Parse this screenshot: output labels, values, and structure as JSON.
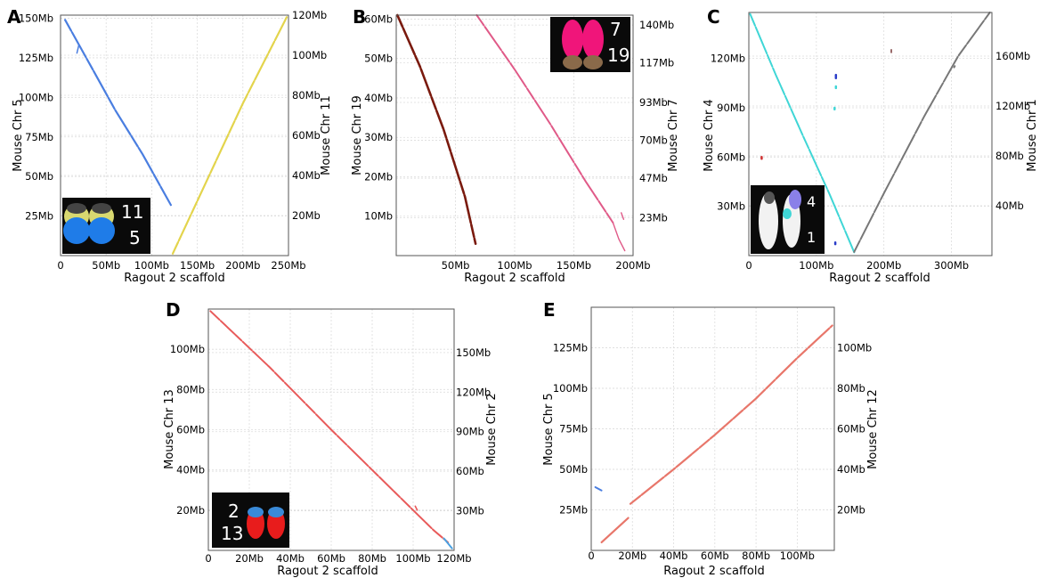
{
  "chart_data": [
    {
      "type": "scatter",
      "panel": "A",
      "xlabel": "Ragout 2 scaffold",
      "ylabel_left": "Mouse Chr 5",
      "ylabel_right": "Mouse Chr 11",
      "xlim": [
        0,
        250
      ],
      "ylim_left": [
        0,
        152
      ],
      "ylim_right": [
        0,
        120
      ],
      "x_ticks": [
        {
          "v": 0,
          "label": "0"
        },
        {
          "v": 50,
          "label": "50Mb"
        },
        {
          "v": 100,
          "label": "100Mb"
        },
        {
          "v": 150,
          "label": "150Mb"
        },
        {
          "v": 200,
          "label": "200Mb"
        },
        {
          "v": 250,
          "label": "250Mb"
        }
      ],
      "y_ticks_left": [
        {
          "v": 25,
          "label": "25Mb"
        },
        {
          "v": 50,
          "label": "50Mb"
        },
        {
          "v": 75,
          "label": "75Mb"
        },
        {
          "v": 100,
          "label": "100Mb"
        },
        {
          "v": 125,
          "label": "125Mb"
        },
        {
          "v": 150,
          "label": "150Mb"
        }
      ],
      "y_ticks_right": [
        {
          "v": 20,
          "label": "20Mb"
        },
        {
          "v": 40,
          "label": "40Mb"
        },
        {
          "v": 60,
          "label": "60Mb"
        },
        {
          "v": 80,
          "label": "80Mb"
        },
        {
          "v": 100,
          "label": "100Mb"
        },
        {
          "v": 120,
          "label": "120Mb"
        }
      ],
      "series": [
        {
          "axis": "left",
          "color": "#4a7ee0",
          "width": 2.2,
          "points": [
            [
              5,
              149
            ],
            [
              33,
              120
            ],
            [
              60,
              92
            ],
            [
              90,
              64
            ],
            [
              121,
              32
            ]
          ]
        },
        {
          "axis": "left",
          "color": "#4a7ee0",
          "width": 1.5,
          "points": [
            [
              18,
              128
            ],
            [
              20,
              133
            ]
          ]
        },
        {
          "axis": "right",
          "color": "#e3d44c",
          "width": 2.2,
          "points": [
            [
              123,
              1
            ],
            [
              160,
              37
            ],
            [
              200,
              76
            ],
            [
              248,
              119
            ]
          ]
        }
      ],
      "inset": {
        "labels": [
          "11",
          "5"
        ]
      }
    },
    {
      "type": "scatter",
      "panel": "B",
      "xlabel": "Ragout 2 scaffold",
      "ylabel_left": "Mouse Chr 19",
      "ylabel_right": "Mouse Chr 7",
      "xlim": [
        0,
        200
      ],
      "ylim_left": [
        0,
        61
      ],
      "ylim_right": [
        0,
        146
      ],
      "x_ticks": [
        {
          "v": 50,
          "label": "50Mb"
        },
        {
          "v": 100,
          "label": "100Mb"
        },
        {
          "v": 150,
          "label": "150Mb"
        },
        {
          "v": 200,
          "label": "200Mb"
        }
      ],
      "y_ticks_left": [
        {
          "v": 10,
          "label": "10Mb"
        },
        {
          "v": 20,
          "label": "20Mb"
        },
        {
          "v": 30,
          "label": "30Mb"
        },
        {
          "v": 40,
          "label": "40Mb"
        },
        {
          "v": 50,
          "label": "50Mb"
        },
        {
          "v": 60,
          "label": "60Mb"
        }
      ],
      "y_ticks_right": [
        {
          "v": 23,
          "label": "23Mb"
        },
        {
          "v": 47,
          "label": "47Mb"
        },
        {
          "v": 70,
          "label": "70Mb"
        },
        {
          "v": 93,
          "label": "93Mb"
        },
        {
          "v": 117,
          "label": "117Mb"
        },
        {
          "v": 140,
          "label": "140Mb"
        }
      ],
      "series": [
        {
          "axis": "left",
          "color": "#7a1a0e",
          "width": 2.6,
          "points": [
            [
              1,
              61
            ],
            [
              20,
              48
            ],
            [
              40,
              32
            ],
            [
              58,
              15
            ],
            [
              67,
              3
            ]
          ]
        },
        {
          "axis": "right",
          "color": "#e05a88",
          "width": 2.0,
          "points": [
            [
              68,
              146
            ],
            [
              100,
              113
            ],
            [
              130,
              80
            ],
            [
              160,
              45
            ],
            [
              183,
              20
            ]
          ]
        },
        {
          "axis": "right",
          "color": "#e05a88",
          "width": 1.4,
          "points": [
            [
              183,
              20
            ],
            [
              188,
              10
            ],
            [
              193,
              3
            ]
          ]
        },
        {
          "axis": "right",
          "color": "#e05a88",
          "width": 1.4,
          "points": [
            [
              190,
              26
            ],
            [
              192,
              22
            ]
          ]
        }
      ],
      "inset": {
        "labels": [
          "7",
          "19"
        ]
      }
    },
    {
      "type": "scatter",
      "panel": "C",
      "xlabel": "Ragout 2 scaffold",
      "ylabel_left": "Mouse Chr 4",
      "ylabel_right": "Mouse Chr 1",
      "xlim": [
        0,
        360
      ],
      "ylim_left": [
        0,
        148
      ],
      "ylim_right": [
        0,
        195
      ],
      "x_ticks": [
        {
          "v": 0,
          "label": "0"
        },
        {
          "v": 100,
          "label": "100Mb"
        },
        {
          "v": 200,
          "label": "200Mb"
        },
        {
          "v": 300,
          "label": "300Mb"
        }
      ],
      "y_ticks_left": [
        {
          "v": 30,
          "label": "30Mb"
        },
        {
          "v": 60,
          "label": "60Mb"
        },
        {
          "v": 90,
          "label": "90Mb"
        },
        {
          "v": 120,
          "label": "120Mb"
        }
      ],
      "y_ticks_right": [
        {
          "v": 40,
          "label": "40Mb"
        },
        {
          "v": 80,
          "label": "80Mb"
        },
        {
          "v": 120,
          "label": "120Mb"
        },
        {
          "v": 160,
          "label": "160Mb"
        }
      ],
      "series": [
        {
          "axis": "left",
          "color": "#3fd6d6",
          "width": 2.0,
          "points": [
            [
              2,
              147
            ],
            [
              40,
              110
            ],
            [
              80,
              73
            ],
            [
              120,
              37
            ],
            [
              156,
              2
            ]
          ]
        },
        {
          "axis": "right",
          "color": "#777777",
          "width": 2.0,
          "points": [
            [
              156,
              3
            ],
            [
              200,
              50
            ],
            [
              260,
              112
            ],
            [
              310,
              160
            ],
            [
              357,
              195
            ]
          ]
        },
        {
          "axis": "left",
          "color": "#2a3cc8",
          "width": 2.5,
          "points": [
            [
              129,
              108
            ],
            [
              129,
              110
            ]
          ]
        },
        {
          "axis": "left",
          "color": "#3fd6d6",
          "width": 2.5,
          "points": [
            [
              129,
              102
            ],
            [
              129,
              103
            ]
          ]
        },
        {
          "axis": "left",
          "color": "#3fd6d6",
          "width": 2.5,
          "points": [
            [
              127,
              89
            ],
            [
              127,
              90
            ]
          ]
        },
        {
          "axis": "left",
          "color": "#2a3cc8",
          "width": 2.5,
          "points": [
            [
              128,
              7
            ],
            [
              128,
              8
            ]
          ]
        },
        {
          "axis": "left",
          "color": "#d03030",
          "width": 2.5,
          "points": [
            [
              19,
              59
            ],
            [
              19,
              60
            ]
          ]
        },
        {
          "axis": "right",
          "color": "#9a6a6a",
          "width": 2.0,
          "points": [
            [
              211,
              163
            ],
            [
              211,
              165
            ]
          ]
        },
        {
          "axis": "right",
          "color": "#777777",
          "width": 2.0,
          "points": [
            [
              304,
              151
            ],
            [
              305,
              152
            ]
          ]
        }
      ],
      "inset": {
        "labels": [
          "4",
          "1"
        ]
      }
    },
    {
      "type": "scatter",
      "panel": "D",
      "xlabel": "Ragout 2 scaffold",
      "ylabel_left": "Mouse Chr 13",
      "ylabel_right": "Mouse Chr 2",
      "xlim": [
        0,
        120
      ],
      "ylim_left": [
        0,
        120
      ],
      "ylim_right": [
        0,
        183
      ],
      "x_ticks": [
        {
          "v": 0,
          "label": "0"
        },
        {
          "v": 20,
          "label": "20Mb"
        },
        {
          "v": 40,
          "label": "40Mb"
        },
        {
          "v": 60,
          "label": "60Mb"
        },
        {
          "v": 80,
          "label": "80Mb"
        },
        {
          "v": 100,
          "label": "100Mb"
        },
        {
          "v": 120,
          "label": "120Mb"
        }
      ],
      "y_ticks_left": [
        {
          "v": 20,
          "label": "20Mb"
        },
        {
          "v": 40,
          "label": "40Mb"
        },
        {
          "v": 60,
          "label": "60Mb"
        },
        {
          "v": 80,
          "label": "80Mb"
        },
        {
          "v": 100,
          "label": "100Mb"
        }
      ],
      "y_ticks_right": [
        {
          "v": 30,
          "label": "30Mb"
        },
        {
          "v": 60,
          "label": "60Mb"
        },
        {
          "v": 90,
          "label": "90Mb"
        },
        {
          "v": 120,
          "label": "120Mb"
        },
        {
          "v": 150,
          "label": "150Mb"
        }
      ],
      "series": [
        {
          "axis": "left",
          "color": "#e85a5a",
          "width": 2.0,
          "points": [
            [
              1,
              119
            ],
            [
              30,
              91
            ],
            [
              60,
              60
            ],
            [
              90,
              30
            ],
            [
              110,
              10
            ],
            [
              117,
              4
            ]
          ]
        },
        {
          "axis": "left",
          "color": "#e85a5a",
          "width": 1.6,
          "points": [
            [
              101,
              22
            ],
            [
              102,
              20
            ]
          ]
        },
        {
          "axis": "left",
          "color": "#4aa0e0",
          "width": 2.0,
          "points": [
            [
              115,
              6
            ],
            [
              119,
              1
            ]
          ]
        }
      ],
      "inset": {
        "labels": [
          "2",
          "13"
        ]
      }
    },
    {
      "type": "scatter",
      "panel": "E",
      "xlabel": "Ragout 2 scaffold",
      "ylabel_left": "Mouse Chr 5",
      "ylabel_right": "Mouse Chr 12",
      "xlim": [
        0,
        118
      ],
      "ylim_left": [
        0,
        150
      ],
      "ylim_right": [
        0,
        120
      ],
      "x_ticks": [
        {
          "v": 0,
          "label": "0"
        },
        {
          "v": 20,
          "label": "20Mb"
        },
        {
          "v": 40,
          "label": "40Mb"
        },
        {
          "v": 60,
          "label": "60Mb"
        },
        {
          "v": 80,
          "label": "80Mb"
        },
        {
          "v": 100,
          "label": "100Mb"
        }
      ],
      "y_ticks_left": [
        {
          "v": 25,
          "label": "25Mb"
        },
        {
          "v": 50,
          "label": "50Mb"
        },
        {
          "v": 75,
          "label": "75Mb"
        },
        {
          "v": 100,
          "label": "100Mb"
        },
        {
          "v": 125,
          "label": "125Mb"
        }
      ],
      "y_ticks_right": [
        {
          "v": 20,
          "label": "20Mb"
        },
        {
          "v": 40,
          "label": "40Mb"
        },
        {
          "v": 60,
          "label": "60Mb"
        },
        {
          "v": 80,
          "label": "80Mb"
        },
        {
          "v": 100,
          "label": "100Mb"
        }
      ],
      "series": [
        {
          "axis": "right",
          "color": "#e8766a",
          "width": 2.2,
          "points": [
            [
              5,
              4
            ],
            [
              18,
              16
            ]
          ]
        },
        {
          "axis": "right",
          "color": "#e8766a",
          "width": 2.2,
          "points": [
            [
              19,
              23
            ],
            [
              40,
              40
            ],
            [
              60,
              57
            ],
            [
              80,
              75
            ],
            [
              100,
              95
            ],
            [
              117,
              111
            ]
          ]
        },
        {
          "axis": "left",
          "color": "#4a7ee0",
          "width": 2.0,
          "points": [
            [
              2,
              39
            ],
            [
              5,
              37
            ]
          ]
        }
      ],
      "inset": null
    }
  ]
}
